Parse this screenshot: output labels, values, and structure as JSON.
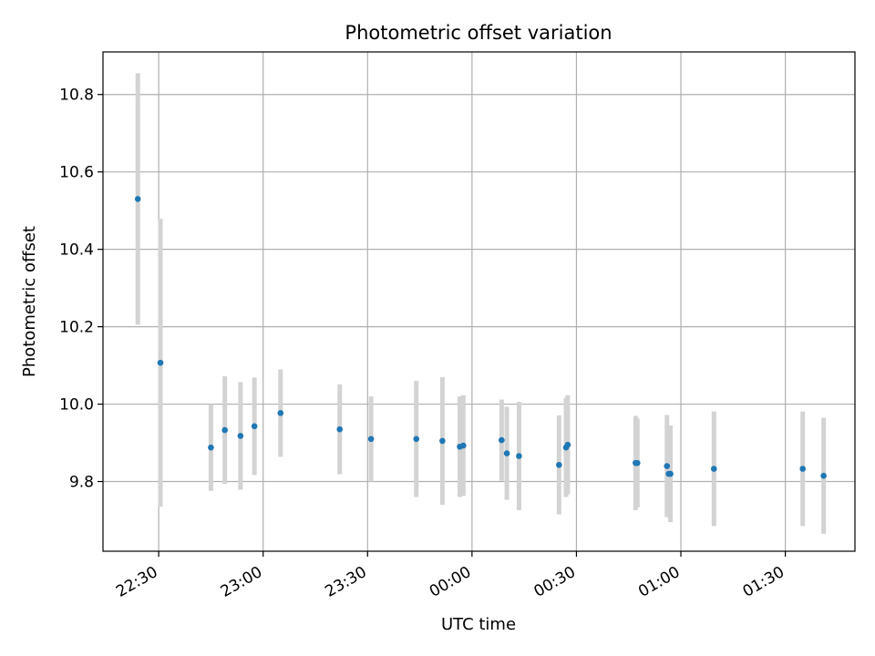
{
  "chart_data": {
    "type": "scatter",
    "title": "Photometric offset variation",
    "xlabel": "UTC time",
    "ylabel": "Photometric offset",
    "grid": true,
    "legend": "none",
    "xlim": [
      "22:14",
      "01:50"
    ],
    "ylim": [
      9.62,
      10.91
    ],
    "x_ticks": [
      "22:30",
      "23:00",
      "23:30",
      "00:00",
      "00:30",
      "01:00",
      "01:30"
    ],
    "y_ticks": [
      "9.8",
      "10.0",
      "10.2",
      "10.4",
      "10.6",
      "10.8"
    ],
    "colors": {
      "point": "#1f77b4",
      "errorbar": "#d3d3d3",
      "grid": "#b0b0b0"
    },
    "series": [
      {
        "points": [
          {
            "x": "22:24:00",
            "y": 10.53,
            "err": 0.325
          },
          {
            "x": "22:30:30",
            "y": 10.107,
            "err": 0.372
          },
          {
            "x": "22:45:00",
            "y": 9.888,
            "err": 0.112
          },
          {
            "x": "22:49:00",
            "y": 9.933,
            "err": 0.139
          },
          {
            "x": "22:53:30",
            "y": 9.918,
            "err": 0.139
          },
          {
            "x": "22:57:30",
            "y": 9.943,
            "err": 0.126
          },
          {
            "x": "23:05:00",
            "y": 9.977,
            "err": 0.113
          },
          {
            "x": "23:22:00",
            "y": 9.935,
            "err": 0.116
          },
          {
            "x": "23:31:00",
            "y": 9.91,
            "err": 0.11
          },
          {
            "x": "23:44:00",
            "y": 9.91,
            "err": 0.15
          },
          {
            "x": "23:51:30",
            "y": 9.905,
            "err": 0.165
          },
          {
            "x": "23:56:30",
            "y": 9.89,
            "err": 0.13
          },
          {
            "x": "23:57:30",
            "y": 9.893,
            "err": 0.13
          },
          {
            "x": "00:08:30",
            "y": 9.907,
            "err": 0.105
          },
          {
            "x": "00:10:00",
            "y": 9.873,
            "err": 0.12
          },
          {
            "x": "00:13:30",
            "y": 9.866,
            "err": 0.14
          },
          {
            "x": "00:25:00",
            "y": 9.843,
            "err": 0.128
          },
          {
            "x": "00:27:00",
            "y": 9.888,
            "err": 0.128
          },
          {
            "x": "00:27:30",
            "y": 9.895,
            "err": 0.128
          },
          {
            "x": "00:47:00",
            "y": 9.848,
            "err": 0.122
          },
          {
            "x": "00:47:30",
            "y": 9.848,
            "err": 0.115
          },
          {
            "x": "00:56:00",
            "y": 9.84,
            "err": 0.132
          },
          {
            "x": "00:56:30",
            "y": 9.82,
            "err": 0.11
          },
          {
            "x": "00:57:00",
            "y": 9.82,
            "err": 0.125
          },
          {
            "x": "01:09:30",
            "y": 9.833,
            "err": 0.148
          },
          {
            "x": "01:35:00",
            "y": 9.833,
            "err": 0.148
          },
          {
            "x": "01:41:00",
            "y": 9.815,
            "err": 0.15
          }
        ]
      }
    ]
  }
}
